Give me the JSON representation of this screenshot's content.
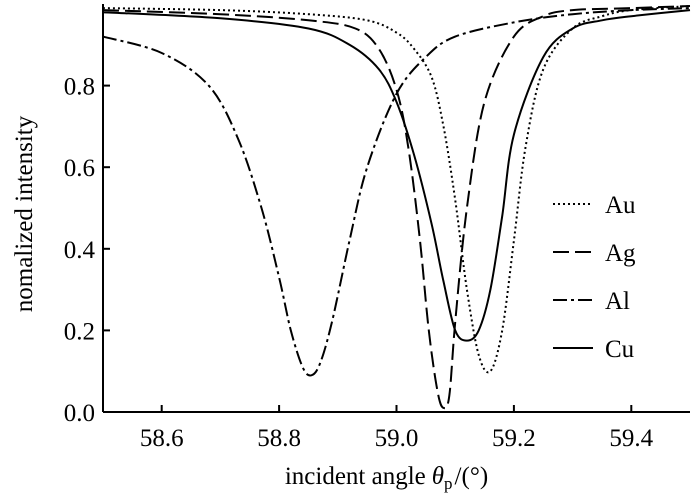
{
  "chart_data": {
    "type": "line",
    "title": "",
    "xlabel": "incident angle",
    "xlabel_symbol": "θ",
    "xlabel_subscript": "p",
    "xlabel_unit": "/(°)",
    "ylabel": "nomalized intensity",
    "xlim": [
      58.5,
      59.5
    ],
    "ylim": [
      0.0,
      1.0
    ],
    "grid": false,
    "legend_position": "right-middle",
    "x_ticks": [
      "58.6",
      "58.8",
      "59.0",
      "59.2",
      "59.4"
    ],
    "x_tick_values": [
      58.6,
      58.8,
      59.0,
      59.2,
      59.4
    ],
    "y_ticks": [
      "0.0",
      "0.2",
      "0.4",
      "0.6",
      "0.8"
    ],
    "y_tick_values": [
      0.0,
      0.2,
      0.4,
      0.6,
      0.8
    ],
    "series": [
      {
        "name": "Au",
        "style": "dotted",
        "x": [
          58.5,
          58.7,
          58.85,
          58.95,
          59.0,
          59.03,
          59.06,
          59.08,
          59.1,
          59.12,
          59.14,
          59.16,
          59.18,
          59.2,
          59.22,
          59.25,
          59.3,
          59.35,
          59.4,
          59.5
        ],
        "y": [
          0.99,
          0.985,
          0.975,
          0.96,
          0.93,
          0.89,
          0.82,
          0.7,
          0.52,
          0.3,
          0.14,
          0.1,
          0.2,
          0.42,
          0.65,
          0.84,
          0.94,
          0.97,
          0.985,
          0.995
        ]
      },
      {
        "name": "Ag",
        "style": "dashed",
        "x": [
          58.5,
          58.7,
          58.85,
          58.93,
          58.97,
          59.0,
          59.02,
          59.04,
          59.055,
          59.07,
          59.08,
          59.09,
          59.1,
          59.12,
          59.15,
          59.2,
          59.25,
          59.3,
          59.4,
          59.5
        ],
        "y": [
          0.985,
          0.975,
          0.96,
          0.94,
          0.89,
          0.79,
          0.65,
          0.42,
          0.2,
          0.05,
          0.01,
          0.04,
          0.22,
          0.5,
          0.76,
          0.92,
          0.97,
          0.985,
          0.99,
          0.995
        ]
      },
      {
        "name": "Al",
        "style": "dashdot",
        "x": [
          58.5,
          58.6,
          58.68,
          58.73,
          58.77,
          58.8,
          58.82,
          58.84,
          58.855,
          58.87,
          58.89,
          58.92,
          58.95,
          59.0,
          59.05,
          59.1,
          59.2,
          59.3,
          59.4,
          59.5
        ],
        "y": [
          0.92,
          0.88,
          0.8,
          0.67,
          0.5,
          0.33,
          0.2,
          0.11,
          0.09,
          0.12,
          0.22,
          0.42,
          0.6,
          0.78,
          0.87,
          0.92,
          0.955,
          0.975,
          0.985,
          0.99
        ]
      },
      {
        "name": "Cu",
        "style": "solid",
        "x": [
          58.5,
          58.7,
          58.85,
          58.92,
          58.97,
          59.0,
          59.03,
          59.06,
          59.08,
          59.1,
          59.12,
          59.14,
          59.16,
          59.18,
          59.2,
          59.25,
          59.3,
          59.35,
          59.4,
          59.5
        ],
        "y": [
          0.98,
          0.965,
          0.94,
          0.9,
          0.84,
          0.76,
          0.63,
          0.46,
          0.32,
          0.2,
          0.175,
          0.2,
          0.3,
          0.48,
          0.68,
          0.87,
          0.94,
          0.96,
          0.97,
          0.985
        ]
      }
    ]
  }
}
